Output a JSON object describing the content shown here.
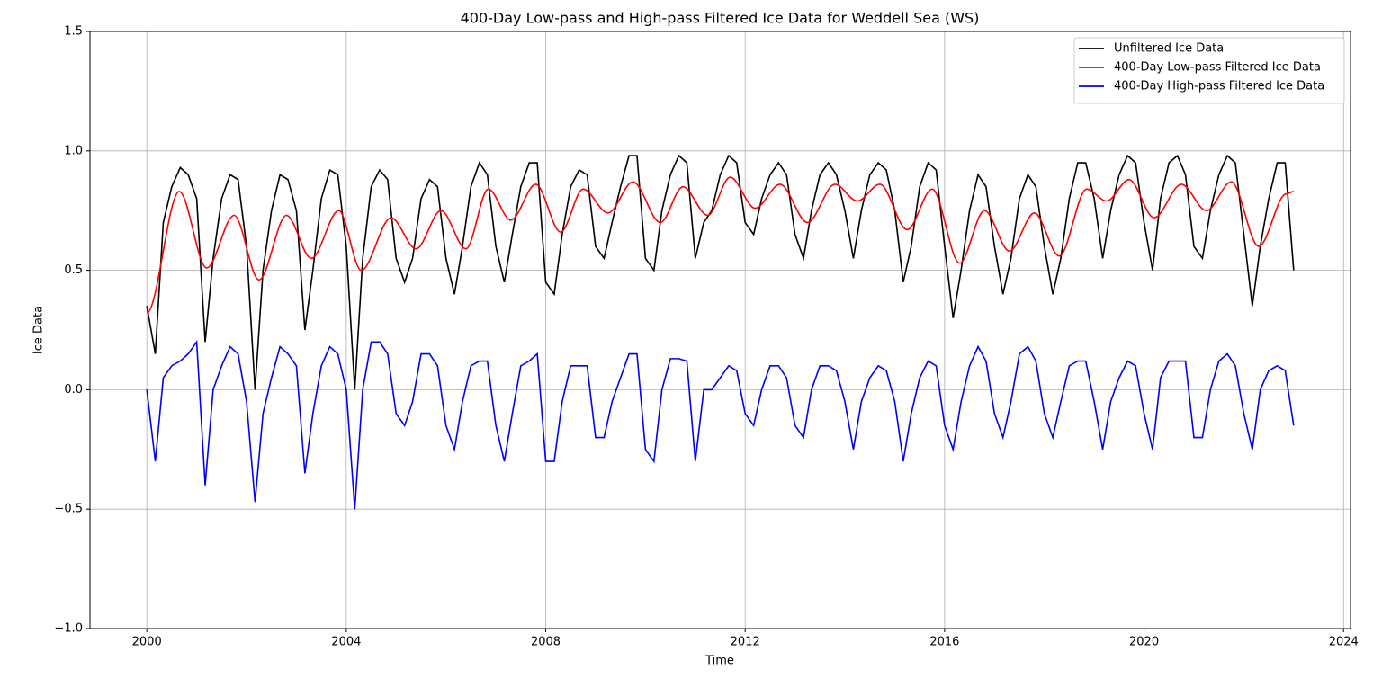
{
  "chart_data": {
    "type": "line",
    "title": "400-Day Low-pass and High-pass Filtered Ice Data for Weddell Sea (WS)",
    "x_label": "Time",
    "y_label": "Ice Data",
    "xlim": [
      1998.86,
      2024.14
    ],
    "xticks": [
      2000,
      2004,
      2008,
      2012,
      2016,
      2020,
      2024
    ],
    "ylim": [
      -1,
      1.5
    ],
    "yticks": [
      {
        "value": -1,
        "label": "−1.0"
      },
      {
        "value": -0.5,
        "label": "−0.5"
      },
      {
        "value": 0,
        "label": "0.0"
      },
      0.5,
      {
        "value": 1,
        "label": "1.0"
      },
      1.5
    ],
    "grid": true,
    "legend": "upper right",
    "series": [
      {
        "name": "Unfiltered Ice Data",
        "color": "#000000",
        "x": [
          2000,
          2000.17,
          2000.33,
          2000.5,
          2000.67,
          2000.83,
          2001,
          2001.17,
          2001.33,
          2001.5,
          2001.67,
          2001.83,
          2002,
          2002.17,
          2002.33,
          2002.5,
          2002.67,
          2002.83,
          2003,
          2003.17,
          2003.33,
          2003.5,
          2003.67,
          2003.83,
          2004,
          2004.17,
          2004.33,
          2004.5,
          2004.67,
          2004.83,
          2005,
          2005.17,
          2005.33,
          2005.5,
          2005.67,
          2005.83,
          2006,
          2006.17,
          2006.33,
          2006.5,
          2006.67,
          2006.83,
          2007,
          2007.17,
          2007.33,
          2007.5,
          2007.67,
          2007.83,
          2008,
          2008.17,
          2008.33,
          2008.5,
          2008.67,
          2008.83,
          2009,
          2009.17,
          2009.33,
          2009.5,
          2009.67,
          2009.83,
          2010,
          2010.17,
          2010.33,
          2010.5,
          2010.67,
          2010.83,
          2011,
          2011.17,
          2011.33,
          2011.5,
          2011.67,
          2011.83,
          2012,
          2012.17,
          2012.33,
          2012.5,
          2012.67,
          2012.83,
          2013,
          2013.17,
          2013.33,
          2013.5,
          2013.67,
          2013.83,
          2014,
          2014.17,
          2014.33,
          2014.5,
          2014.67,
          2014.83,
          2015,
          2015.17,
          2015.33,
          2015.5,
          2015.67,
          2015.83,
          2016,
          2016.17,
          2016.33,
          2016.5,
          2016.67,
          2016.83,
          2017,
          2017.17,
          2017.33,
          2017.5,
          2017.67,
          2017.83,
          2018,
          2018.17,
          2018.33,
          2018.5,
          2018.67,
          2018.83,
          2019,
          2019.17,
          2019.33,
          2019.5,
          2019.67,
          2019.83,
          2020,
          2020.17,
          2020.33,
          2020.5,
          2020.67,
          2020.83,
          2021,
          2021.17,
          2021.33,
          2021.5,
          2021.67,
          2021.83,
          2022,
          2022.17,
          2022.33,
          2022.5,
          2022.67,
          2022.83,
          2023
        ],
        "values": [
          0.35,
          0.15,
          0.7,
          0.85,
          0.93,
          0.9,
          0.8,
          0.2,
          0.55,
          0.8,
          0.9,
          0.88,
          0.6,
          0.0,
          0.5,
          0.75,
          0.9,
          0.88,
          0.75,
          0.25,
          0.5,
          0.8,
          0.92,
          0.9,
          0.6,
          0.0,
          0.55,
          0.85,
          0.92,
          0.88,
          0.55,
          0.45,
          0.55,
          0.8,
          0.88,
          0.85,
          0.55,
          0.4,
          0.6,
          0.85,
          0.95,
          0.9,
          0.6,
          0.45,
          0.65,
          0.85,
          0.95,
          0.95,
          0.45,
          0.4,
          0.65,
          0.85,
          0.92,
          0.9,
          0.6,
          0.55,
          0.7,
          0.85,
          0.98,
          0.98,
          0.55,
          0.5,
          0.75,
          0.9,
          0.98,
          0.95,
          0.55,
          0.7,
          0.75,
          0.9,
          0.98,
          0.95,
          0.7,
          0.65,
          0.8,
          0.9,
          0.95,
          0.9,
          0.65,
          0.55,
          0.75,
          0.9,
          0.95,
          0.9,
          0.75,
          0.55,
          0.75,
          0.9,
          0.95,
          0.92,
          0.75,
          0.45,
          0.6,
          0.85,
          0.95,
          0.92,
          0.6,
          0.3,
          0.5,
          0.75,
          0.9,
          0.85,
          0.6,
          0.4,
          0.55,
          0.8,
          0.9,
          0.85,
          0.6,
          0.4,
          0.55,
          0.8,
          0.95,
          0.95,
          0.8,
          0.55,
          0.75,
          0.9,
          0.98,
          0.95,
          0.7,
          0.5,
          0.8,
          0.95,
          0.98,
          0.9,
          0.6,
          0.55,
          0.75,
          0.9,
          0.98,
          0.95,
          0.65,
          0.35,
          0.6,
          0.8,
          0.95,
          0.95,
          0.5
        ]
      },
      {
        "name": "400-Day Low-pass Filtered Ice Data",
        "color": "#ff0000",
        "x": [
          2000,
          2000.65,
          2001.2,
          2001.75,
          2002.25,
          2002.8,
          2003.3,
          2003.85,
          2004.3,
          2004.9,
          2005.4,
          2005.9,
          2006.4,
          2006.85,
          2007.3,
          2007.8,
          2008.3,
          2008.75,
          2009.25,
          2009.75,
          2010.3,
          2010.75,
          2011.25,
          2011.7,
          2012.2,
          2012.7,
          2013.25,
          2013.8,
          2014.25,
          2014.7,
          2015.25,
          2015.75,
          2016.3,
          2016.8,
          2017.3,
          2017.8,
          2018.3,
          2018.85,
          2019.25,
          2019.7,
          2020.2,
          2020.75,
          2021.25,
          2021.75,
          2022.3,
          2022.85,
          2023
        ],
        "values": [
          0.32,
          0.83,
          0.51,
          0.73,
          0.46,
          0.73,
          0.55,
          0.75,
          0.5,
          0.72,
          0.59,
          0.75,
          0.59,
          0.84,
          0.71,
          0.86,
          0.66,
          0.84,
          0.74,
          0.87,
          0.7,
          0.85,
          0.73,
          0.89,
          0.76,
          0.86,
          0.7,
          0.86,
          0.79,
          0.86,
          0.67,
          0.84,
          0.53,
          0.75,
          0.58,
          0.74,
          0.56,
          0.84,
          0.79,
          0.88,
          0.72,
          0.86,
          0.75,
          0.87,
          0.6,
          0.82,
          0.83
        ]
      },
      {
        "name": "400-Day High-pass Filtered Ice Data",
        "color": "#0000ff",
        "x": [
          2000,
          2000.17,
          2000.33,
          2000.5,
          2000.67,
          2000.83,
          2001,
          2001.17,
          2001.33,
          2001.5,
          2001.67,
          2001.83,
          2002,
          2002.17,
          2002.33,
          2002.5,
          2002.67,
          2002.83,
          2003,
          2003.17,
          2003.33,
          2003.5,
          2003.67,
          2003.83,
          2004,
          2004.17,
          2004.33,
          2004.5,
          2004.67,
          2004.83,
          2005,
          2005.17,
          2005.33,
          2005.5,
          2005.67,
          2005.83,
          2006,
          2006.17,
          2006.33,
          2006.5,
          2006.67,
          2006.83,
          2007,
          2007.17,
          2007.33,
          2007.5,
          2007.67,
          2007.83,
          2008,
          2008.17,
          2008.33,
          2008.5,
          2008.67,
          2008.83,
          2009,
          2009.17,
          2009.33,
          2009.5,
          2009.67,
          2009.83,
          2010,
          2010.17,
          2010.33,
          2010.5,
          2010.67,
          2010.83,
          2011,
          2011.17,
          2011.33,
          2011.5,
          2011.67,
          2011.83,
          2012,
          2012.17,
          2012.33,
          2012.5,
          2012.67,
          2012.83,
          2013,
          2013.17,
          2013.33,
          2013.5,
          2013.67,
          2013.83,
          2014,
          2014.17,
          2014.33,
          2014.5,
          2014.67,
          2014.83,
          2015,
          2015.17,
          2015.33,
          2015.5,
          2015.67,
          2015.83,
          2016,
          2016.17,
          2016.33,
          2016.5,
          2016.67,
          2016.83,
          2017,
          2017.17,
          2017.33,
          2017.5,
          2017.67,
          2017.83,
          2018,
          2018.17,
          2018.33,
          2018.5,
          2018.67,
          2018.83,
          2019,
          2019.17,
          2019.33,
          2019.5,
          2019.67,
          2019.83,
          2020,
          2020.17,
          2020.33,
          2020.5,
          2020.67,
          2020.83,
          2021,
          2021.17,
          2021.33,
          2021.5,
          2021.67,
          2021.83,
          2022,
          2022.17,
          2022.33,
          2022.5,
          2022.67,
          2022.83,
          2023
        ],
        "values": [
          0.0,
          -0.3,
          0.05,
          0.1,
          0.12,
          0.15,
          0.2,
          -0.4,
          0.0,
          0.1,
          0.18,
          0.15,
          -0.05,
          -0.47,
          -0.1,
          0.05,
          0.18,
          0.15,
          0.1,
          -0.35,
          -0.1,
          0.1,
          0.18,
          0.15,
          0.0,
          -0.5,
          0.0,
          0.2,
          0.2,
          0.15,
          -0.1,
          -0.15,
          -0.05,
          0.15,
          0.15,
          0.1,
          -0.15,
          -0.25,
          -0.05,
          0.1,
          0.12,
          0.12,
          -0.15,
          -0.3,
          -0.1,
          0.1,
          0.12,
          0.15,
          -0.3,
          -0.3,
          -0.05,
          0.1,
          0.1,
          0.1,
          -0.2,
          -0.2,
          -0.05,
          0.05,
          0.15,
          0.15,
          -0.25,
          -0.3,
          0.0,
          0.13,
          0.13,
          0.12,
          -0.3,
          0.0,
          0.0,
          0.05,
          0.1,
          0.08,
          -0.1,
          -0.15,
          0.0,
          0.1,
          0.1,
          0.05,
          -0.15,
          -0.2,
          0.0,
          0.1,
          0.1,
          0.08,
          -0.05,
          -0.25,
          -0.05,
          0.05,
          0.1,
          0.08,
          -0.05,
          -0.3,
          -0.1,
          0.05,
          0.12,
          0.1,
          -0.15,
          -0.25,
          -0.05,
          0.1,
          0.18,
          0.12,
          -0.1,
          -0.2,
          -0.05,
          0.15,
          0.18,
          0.12,
          -0.1,
          -0.2,
          -0.05,
          0.1,
          0.12,
          0.12,
          -0.05,
          -0.25,
          -0.05,
          0.05,
          0.12,
          0.1,
          -0.1,
          -0.25,
          0.05,
          0.12,
          0.12,
          0.12,
          -0.2,
          -0.2,
          0.0,
          0.12,
          0.15,
          0.1,
          -0.1,
          -0.25,
          0.0,
          0.08,
          0.1,
          0.08,
          -0.15
        ]
      }
    ]
  }
}
